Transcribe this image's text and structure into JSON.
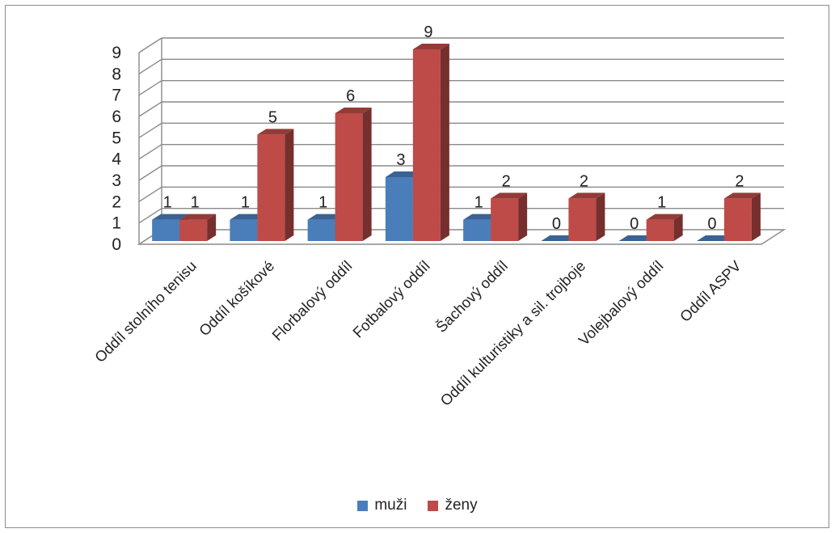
{
  "chart_data": {
    "type": "bar",
    "categories": [
      "Oddíl stolního tenisu",
      "Oddíl košíkové",
      "Florbalový oddíl",
      "Fotbalový oddíl",
      "Šachový oddíl",
      "Oddíl kulturistiky a sil. trojboje",
      "Volejbalový oddíl",
      "Oddíl ASPV"
    ],
    "series": [
      {
        "name": "muži",
        "values": [
          1,
          1,
          1,
          3,
          1,
          0,
          0,
          0
        ],
        "color": "#4a7ebb"
      },
      {
        "name": "ženy",
        "values": [
          1,
          5,
          6,
          9,
          2,
          2,
          1,
          2
        ],
        "color": "#be4b48"
      }
    ],
    "y_ticks": [
      "0",
      "1",
      "2",
      "3",
      "4",
      "5",
      "6",
      "7",
      "8",
      "9"
    ],
    "ylim": [
      0,
      9
    ],
    "grid": true,
    "three_d": true,
    "data_labels": true,
    "legend_position": "bottom",
    "title": "",
    "xlabel": "",
    "ylabel": ""
  }
}
